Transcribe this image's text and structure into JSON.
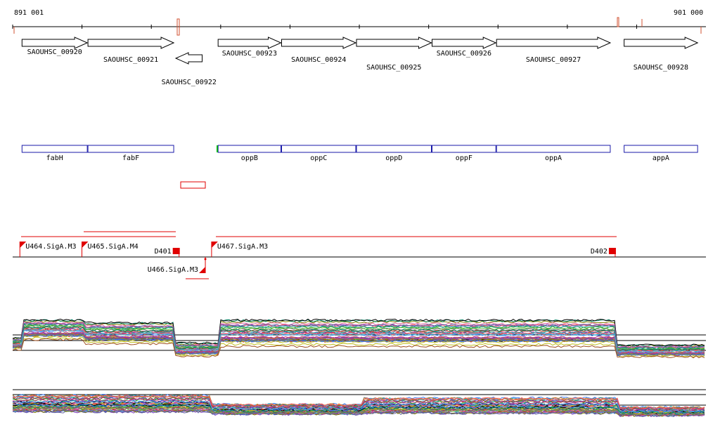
{
  "coordinates": {
    "start_label": "891 001",
    "end_label": "901 000",
    "start": 891001,
    "end": 901000
  },
  "genes": [
    {
      "locus": "SAOUHSC_00920",
      "name": "fabH",
      "strand": "+",
      "start": 891136,
      "end": 892077
    },
    {
      "locus": "SAOUHSC_00921",
      "name": "fabF",
      "strand": "+",
      "start": 892087,
      "end": 893324
    },
    {
      "locus": "SAOUHSC_00922",
      "name": "",
      "strand": "-",
      "start": 893354,
      "end": 893734
    },
    {
      "locus": "SAOUHSC_00923",
      "name": "oppB",
      "strand": "+",
      "start": 893964,
      "end": 894870
    },
    {
      "locus": "SAOUHSC_00924",
      "name": "oppC",
      "strand": "+",
      "start": 894880,
      "end": 895950
    },
    {
      "locus": "SAOUHSC_00925",
      "name": "oppD",
      "strand": "+",
      "start": 895960,
      "end": 897040
    },
    {
      "locus": "SAOUHSC_00926",
      "name": "oppF",
      "strand": "+",
      "start": 897050,
      "end": 897970
    },
    {
      "locus": "SAOUHSC_00927",
      "name": "oppA",
      "strand": "+",
      "start": 897980,
      "end": 899620
    },
    {
      "locus": "SAOUHSC_00928",
      "name": "appA",
      "strand": "+",
      "start": 899820,
      "end": 900880
    }
  ],
  "promoters": [
    {
      "label": "U464.SigA.M3",
      "strand": "+",
      "position": 891105
    },
    {
      "label": "U465.SigA.M4",
      "strand": "+",
      "position": 892000
    },
    {
      "label": "U467.SigA.M3",
      "strand": "+",
      "position": 893870
    },
    {
      "label": "U466.SigA.M3",
      "strand": "-",
      "position": 893780
    }
  ],
  "terminators": [
    {
      "label": "D401",
      "position": 893310
    },
    {
      "label": "D402",
      "position": 899600
    }
  ],
  "colors": {
    "gene_outline": "#000000",
    "name_box": "#1a1aa8",
    "annotation": "#e00000",
    "highlight": "#00d000"
  }
}
